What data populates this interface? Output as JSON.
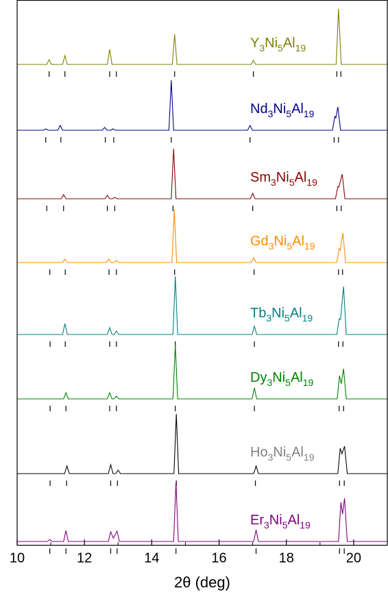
{
  "chart_data": {
    "type": "line",
    "xlabel": "2θ (deg)",
    "xlim": [
      10,
      21
    ],
    "xticks": [
      10,
      12,
      14,
      16,
      18,
      20
    ],
    "xminorticks": [
      11,
      13,
      15,
      17,
      19,
      21
    ],
    "ylim": [
      0,
      7.95
    ],
    "series": [
      {
        "name": "Y3Ni5Al19",
        "color": "#808000",
        "label_color": "#808000",
        "x": [
          10,
          10.88,
          10.95,
          11.02,
          11.35,
          11.42,
          11.49,
          12.68,
          12.75,
          12.82,
          14.61,
          14.68,
          14.75,
          16.95,
          17.02,
          17.09,
          19.48,
          19.55,
          19.63,
          21
        ],
        "values": [
          7.01,
          7.01,
          7.08,
          7.01,
          7.01,
          7.14,
          7.01,
          7.01,
          7.23,
          7.01,
          7.01,
          7.45,
          7.01,
          7.01,
          7.07,
          7.01,
          7.01,
          7.82,
          7.01,
          7.01
        ],
        "reflections": [
          10.95,
          11.42,
          12.75,
          12.95,
          14.68,
          17.02,
          19.5,
          19.62
        ]
      },
      {
        "name": "Nd3Ni5Al19",
        "color": "#00008b",
        "label_color": "#00008b",
        "x": [
          10,
          10.78,
          10.85,
          10.92,
          11.21,
          11.28,
          11.35,
          12.53,
          12.6,
          12.67,
          12.78,
          12.85,
          12.92,
          14.51,
          14.58,
          14.65,
          16.85,
          16.92,
          16.99,
          19.37,
          19.44,
          19.47,
          19.53,
          19.61,
          21
        ],
        "values": [
          6.05,
          6.05,
          6.07,
          6.05,
          6.05,
          6.12,
          6.05,
          6.05,
          6.09,
          6.05,
          6.05,
          6.07,
          6.05,
          6.05,
          6.78,
          6.05,
          6.05,
          6.12,
          6.05,
          6.05,
          6.25,
          6.23,
          6.39,
          6.05,
          6.05
        ],
        "reflections": [
          10.85,
          11.3,
          12.62,
          12.87,
          14.58,
          16.92,
          19.42,
          19.55
        ]
      },
      {
        "name": "Sm3Ni5Al19",
        "color": "#8b0000",
        "label_color": "#8b0000",
        "x": [
          10,
          11.31,
          11.38,
          11.45,
          12.61,
          12.68,
          12.75,
          12.83,
          12.9,
          12.97,
          14.58,
          14.65,
          14.72,
          16.93,
          17.0,
          17.07,
          19.46,
          19.53,
          19.56,
          19.66,
          19.74,
          21
        ],
        "values": [
          5.05,
          5.05,
          5.11,
          5.05,
          5.05,
          5.1,
          5.05,
          5.05,
          5.07,
          5.05,
          5.05,
          5.78,
          5.05,
          5.05,
          5.13,
          5.05,
          5.05,
          5.23,
          5.22,
          5.41,
          5.05,
          5.05
        ],
        "reflections": [
          10.88,
          11.38,
          12.68,
          12.9,
          14.63,
          17.0,
          19.5,
          19.63
        ]
      },
      {
        "name": "Gd3Ni5Al19",
        "color": "#ff8c00",
        "label_color": "#ff8c00",
        "x": [
          10,
          11.35,
          11.42,
          11.49,
          12.65,
          12.72,
          12.79,
          12.88,
          12.95,
          13.02,
          14.6,
          14.67,
          14.74,
          16.96,
          17.03,
          17.1,
          19.5,
          19.57,
          19.6,
          19.68,
          19.76,
          21
        ],
        "values": [
          4.12,
          4.12,
          4.17,
          4.12,
          4.12,
          4.17,
          4.12,
          4.12,
          4.15,
          4.12,
          4.12,
          4.89,
          4.12,
          4.12,
          4.19,
          4.12,
          4.12,
          4.32,
          4.3,
          4.55,
          4.12,
          4.12
        ],
        "reflections": [
          10.97,
          11.43,
          12.73,
          12.95,
          14.68,
          17.04,
          19.55,
          19.67
        ]
      },
      {
        "name": "Tb3Ni5Al19",
        "color": "#008080",
        "label_color": "#008080",
        "x": [
          10,
          11.35,
          11.42,
          11.49,
          12.68,
          12.75,
          12.82,
          12.88,
          12.95,
          13.02,
          14.63,
          14.7,
          14.77,
          16.98,
          17.05,
          17.12,
          19.5,
          19.57,
          19.61,
          19.7,
          19.78,
          21
        ],
        "values": [
          3.07,
          3.07,
          3.23,
          3.07,
          3.07,
          3.17,
          3.07,
          3.07,
          3.12,
          3.07,
          3.07,
          3.92,
          3.07,
          3.07,
          3.19,
          3.07,
          3.07,
          3.3,
          3.29,
          3.77,
          3.07,
          3.07
        ],
        "reflections": [
          10.98,
          11.43,
          12.75,
          12.95,
          14.7,
          17.05,
          19.55,
          19.68
        ]
      },
      {
        "name": "Dy3Ni5Al19",
        "color": "#008000",
        "label_color": "#008000",
        "x": [
          10,
          11.38,
          11.45,
          11.52,
          12.68,
          12.75,
          12.82,
          12.88,
          12.95,
          13.02,
          14.63,
          14.7,
          14.77,
          16.98,
          17.05,
          17.12,
          19.51,
          19.58,
          19.63,
          19.7,
          19.78,
          21
        ],
        "values": [
          2.13,
          2.13,
          2.22,
          2.13,
          2.13,
          2.22,
          2.13,
          2.13,
          2.17,
          2.13,
          2.13,
          2.92,
          2.13,
          2.13,
          2.29,
          2.13,
          2.13,
          2.47,
          2.35,
          2.57,
          2.13,
          2.13
        ],
        "reflections": [
          10.98,
          11.45,
          12.75,
          12.95,
          14.7,
          17.05,
          19.57,
          19.7
        ]
      },
      {
        "name": "Ho3Ni5Al19",
        "color": "#000000",
        "label_color": "#808080",
        "x": [
          10,
          11.41,
          11.48,
          11.55,
          12.71,
          12.78,
          12.85,
          12.93,
          13.0,
          13.07,
          14.66,
          14.73,
          14.8,
          17.03,
          17.1,
          17.17,
          19.53,
          19.6,
          19.65,
          19.73,
          19.81,
          21
        ],
        "values": [
          1.04,
          1.04,
          1.15,
          1.04,
          1.04,
          1.17,
          1.04,
          1.04,
          1.09,
          1.04,
          1.04,
          1.91,
          1.04,
          1.04,
          1.15,
          1.04,
          1.04,
          1.41,
          1.33,
          1.44,
          1.04,
          1.04
        ],
        "reflections": [
          10.98,
          11.47,
          12.78,
          12.98,
          14.73,
          17.08,
          19.58,
          19.72
        ]
      },
      {
        "name": "Er3Ni5Al19",
        "color": "#800080",
        "label_color": "#800080",
        "x": [
          10,
          10.9,
          10.97,
          11.04,
          11.38,
          11.45,
          11.52,
          12.71,
          12.78,
          12.86,
          12.97,
          13.04,
          14.65,
          14.72,
          14.79,
          17.03,
          17.1,
          17.17,
          19.55,
          19.62,
          19.67,
          19.73,
          19.81,
          21
        ],
        "values": [
          0.05,
          0.05,
          0.08,
          0.05,
          0.05,
          0.21,
          0.05,
          0.05,
          0.19,
          0.1,
          0.2,
          0.05,
          0.05,
          0.91,
          0.05,
          0.05,
          0.22,
          0.05,
          0.05,
          0.62,
          0.45,
          0.68,
          0.05,
          0.05
        ],
        "reflections": [
          10.97,
          11.45,
          12.78,
          12.97,
          14.72,
          17.1,
          19.58,
          19.72
        ]
      }
    ]
  }
}
